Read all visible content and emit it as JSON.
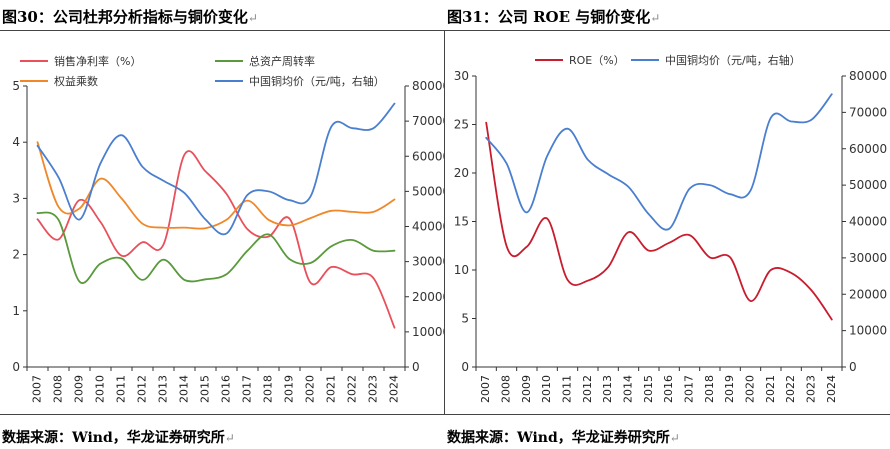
{
  "left": {
    "title": "图30：公司杜邦分析指标与铜价变化",
    "source": "数据来源：Wind，华龙证券研究所",
    "chart_data": {
      "type": "line",
      "x": [
        "2007",
        "2008",
        "2009",
        "2010",
        "2011",
        "2012",
        "2013",
        "2014",
        "2015",
        "2016",
        "2017",
        "2018",
        "2019",
        "2020",
        "2021",
        "2022",
        "2023",
        "2024"
      ],
      "ylim_left": [
        0,
        5
      ],
      "ylim_right": [
        0,
        80000
      ],
      "yticks_left": [
        "0",
        "1",
        "2",
        "3",
        "4",
        "5"
      ],
      "yticks_right": [
        "0",
        "10000",
        "20000",
        "30000",
        "40000",
        "50000",
        "60000",
        "70000",
        "80000"
      ],
      "grid": false,
      "legend_position": "top",
      "series": [
        {
          "name": "销售净利率（%）",
          "axis": "left",
          "color": "#e8505b",
          "values": [
            2.63,
            2.27,
            2.97,
            2.58,
            1.98,
            2.22,
            2.18,
            3.78,
            3.48,
            3.08,
            2.45,
            2.32,
            2.64,
            1.5,
            1.78,
            1.65,
            1.58,
            0.7
          ]
        },
        {
          "name": "总资产周转率",
          "axis": "left",
          "color": "#5a9a3c",
          "values": [
            2.74,
            2.62,
            1.52,
            1.84,
            1.93,
            1.55,
            1.91,
            1.55,
            1.56,
            1.65,
            2.07,
            2.36,
            1.92,
            1.85,
            2.15,
            2.26,
            2.07,
            2.07
          ]
        },
        {
          "name": "权益乘数",
          "axis": "left",
          "color": "#f0882a",
          "values": [
            4.0,
            2.85,
            2.82,
            3.35,
            3.0,
            2.55,
            2.48,
            2.48,
            2.47,
            2.62,
            2.96,
            2.62,
            2.52,
            2.65,
            2.78,
            2.76,
            2.76,
            2.98
          ]
        },
        {
          "name": "中国铜均价（元/吨，右轴）",
          "axis": "right",
          "color": "#4a7fcf",
          "values": [
            63000,
            54000,
            42000,
            58000,
            66000,
            57000,
            53000,
            49500,
            42000,
            38000,
            49000,
            50000,
            47500,
            48500,
            68500,
            68000,
            68000,
            75000
          ]
        }
      ]
    }
  },
  "right": {
    "title": "图31：公司 ROE 与铜价变化",
    "source": "数据来源：Wind，华龙证券研究所",
    "chart_data": {
      "type": "line",
      "x": [
        "2007",
        "2008",
        "2009",
        "2010",
        "2011",
        "2012",
        "2013",
        "2014",
        "2015",
        "2016",
        "2017",
        "2018",
        "2019",
        "2020",
        "2021",
        "2022",
        "2023",
        "2024"
      ],
      "ylim_left": [
        0,
        30
      ],
      "ylim_right": [
        0,
        80000
      ],
      "yticks_left": [
        "0",
        "5",
        "10",
        "15",
        "20",
        "25",
        "30"
      ],
      "yticks_right": [
        "0",
        "10000",
        "20000",
        "30000",
        "40000",
        "50000",
        "60000",
        "70000",
        "80000"
      ],
      "grid": false,
      "legend_position": "top",
      "series": [
        {
          "name": "ROE（%）",
          "axis": "left",
          "color": "#c81d2e",
          "values": [
            25.2,
            12.5,
            12.4,
            15.3,
            9.0,
            8.9,
            10.3,
            13.9,
            12.0,
            12.8,
            13.6,
            11.3,
            11.3,
            6.8,
            10.0,
            9.7,
            7.9,
            4.9
          ]
        },
        {
          "name": "中国铜均价（元/吨，右轴）",
          "axis": "right",
          "color": "#4a7fcf",
          "values": [
            63000,
            56000,
            42500,
            58000,
            65500,
            57000,
            53000,
            49500,
            42000,
            38000,
            49000,
            50000,
            47500,
            48500,
            68500,
            67500,
            68000,
            75000
          ]
        }
      ]
    }
  }
}
